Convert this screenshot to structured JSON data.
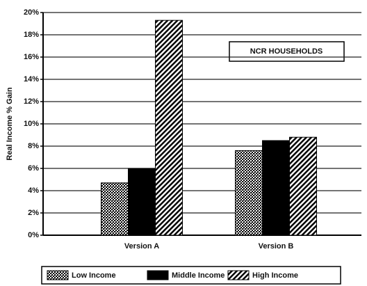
{
  "chart_data": {
    "type": "bar",
    "y_label": "Real Income % Gain",
    "annotation": "NCR HOUSEHOLDS",
    "categories": [
      "Version A",
      "Version B"
    ],
    "series": [
      {
        "name": "Low Income",
        "color": "#000000",
        "pattern": "dots",
        "values": [
          4.7,
          7.6
        ]
      },
      {
        "name": "Middle Income",
        "color": "#000000",
        "pattern": "solid",
        "values": [
          6.0,
          8.5
        ]
      },
      {
        "name": "High Income",
        "color": "#000000",
        "pattern": "hatch",
        "values": [
          19.3,
          8.8
        ]
      }
    ],
    "ylim": [
      0,
      20
    ],
    "yticks": [
      {
        "value": 0,
        "label": "0%"
      },
      {
        "value": 2,
        "label": "2%"
      },
      {
        "value": 4,
        "label": "4%"
      },
      {
        "value": 6,
        "label": "6%"
      },
      {
        "value": 8,
        "label": "8%"
      },
      {
        "value": 10,
        "label": "10%"
      },
      {
        "value": 12,
        "label": "12%"
      },
      {
        "value": 14,
        "label": "14%"
      },
      {
        "value": 16,
        "label": "16%"
      },
      {
        "value": 18,
        "label": "18%"
      },
      {
        "value": 20,
        "label": "20%"
      }
    ],
    "grid": true,
    "legend": "bottom"
  }
}
